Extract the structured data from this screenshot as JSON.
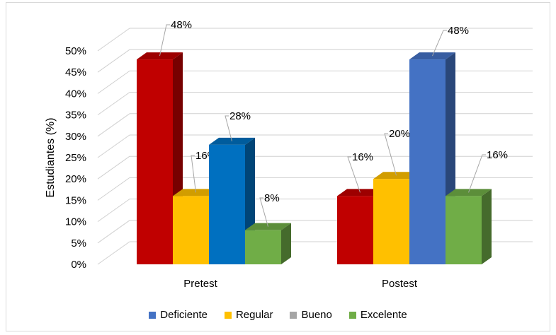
{
  "chart_data": {
    "type": "bar",
    "title": "",
    "ylabel": "Estudiantes (%)",
    "xlabel": "",
    "ylim": [
      0,
      50
    ],
    "yticks": [
      "0%",
      "5%",
      "10%",
      "15%",
      "20%",
      "25%",
      "30%",
      "35%",
      "40%",
      "45%",
      "50%"
    ],
    "categories": [
      "Pretest",
      "Postest"
    ],
    "legend_position": "bottom",
    "grid": true,
    "three_d": true,
    "legend": [
      {
        "name": "Deficiente",
        "color": "#4472C4"
      },
      {
        "name": "Regular",
        "color": "#FFC000"
      },
      {
        "name": "Bueno",
        "color": "#A5A5A5"
      },
      {
        "name": "Excelente",
        "color": "#70AD47"
      }
    ],
    "groups": [
      {
        "category": "Pretest",
        "bars": [
          {
            "value": 48,
            "label": "48%",
            "color": "#C00000"
          },
          {
            "value": 16,
            "label": "16%",
            "color": "#FFC000"
          },
          {
            "value": 28,
            "label": "28%",
            "color": "#0070C0"
          },
          {
            "value": 8,
            "label": "8%",
            "color": "#70AD47"
          }
        ]
      },
      {
        "category": "Postest",
        "bars": [
          {
            "value": 16,
            "label": "16%",
            "color": "#C00000"
          },
          {
            "value": 20,
            "label": "20%",
            "color": "#FFC000"
          },
          {
            "value": 48,
            "label": "48%",
            "color": "#4472C4"
          },
          {
            "value": 16,
            "label": "16%",
            "color": "#70AD47"
          }
        ]
      }
    ]
  }
}
